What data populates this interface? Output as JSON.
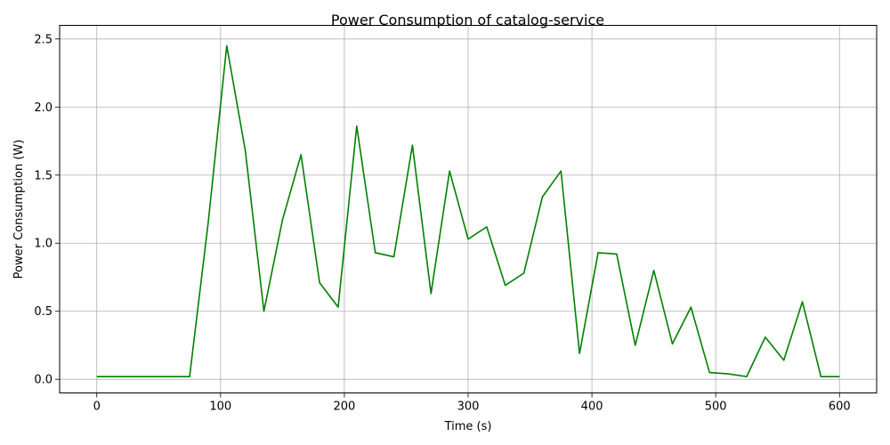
{
  "chart_data": {
    "type": "line",
    "title": "Power Consumption of catalog-service",
    "xlabel": "Time (s)",
    "ylabel": "Power Consumption (W)",
    "xlim": [
      -30,
      630
    ],
    "ylim": [
      -0.1,
      2.6
    ],
    "xticks": [
      0,
      100,
      200,
      300,
      400,
      500,
      600
    ],
    "yticks": [
      0.0,
      0.5,
      1.0,
      1.5,
      2.0,
      2.5
    ],
    "xtick_labels": [
      "0",
      "100",
      "200",
      "300",
      "400",
      "500",
      "600"
    ],
    "ytick_labels": [
      "0.0",
      "0.5",
      "1.0",
      "1.5",
      "2.0",
      "2.5"
    ],
    "grid": true,
    "colors": {
      "line": "#008000",
      "grid": "#b0b0b0",
      "axis": "#000000"
    },
    "series": [
      {
        "x": [
          0,
          15,
          30,
          45,
          60,
          75,
          90,
          105,
          120,
          135,
          150,
          165,
          180,
          195,
          210,
          225,
          240,
          255,
          270,
          285,
          300,
          315,
          330,
          345,
          360,
          375,
          390,
          405,
          420,
          435,
          450,
          465,
          480,
          495,
          510,
          525,
          540,
          555,
          570,
          585,
          600
        ],
        "y": [
          0.02,
          0.02,
          0.02,
          0.02,
          0.02,
          0.02,
          1.15,
          2.45,
          1.68,
          0.5,
          1.17,
          1.65,
          0.71,
          0.53,
          1.86,
          0.93,
          0.9,
          1.72,
          0.63,
          1.53,
          1.03,
          1.12,
          0.69,
          0.78,
          1.34,
          1.53,
          0.19,
          0.93,
          0.92,
          0.25,
          0.8,
          0.26,
          0.53,
          0.05,
          0.04,
          0.02,
          0.31,
          0.14,
          0.57,
          0.02,
          0.02
        ]
      }
    ]
  }
}
